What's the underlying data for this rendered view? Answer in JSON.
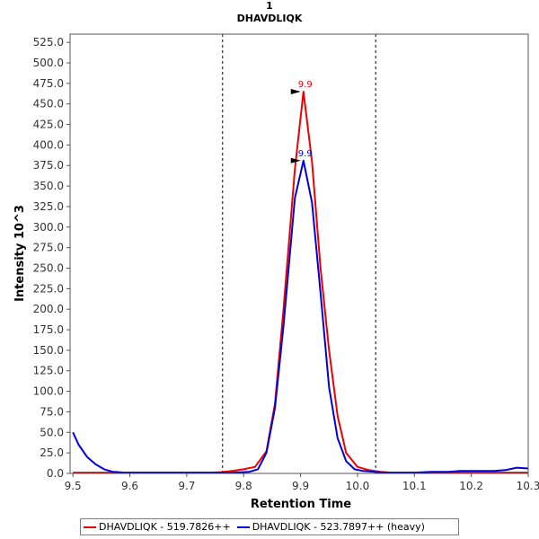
{
  "chart_data": {
    "type": "line",
    "title": "1",
    "subtitle": "DHAVDLIQK",
    "xlabel": "Retention Time",
    "ylabel": "Intensity 10^3",
    "xlim": [
      9.495,
      10.3
    ],
    "ylim": [
      0,
      535
    ],
    "x_ticks": [
      "9.5",
      "9.6",
      "9.7",
      "9.8",
      "9.9",
      "10.0",
      "10.1",
      "10.2",
      "10.3"
    ],
    "y_ticks": [
      "0.0",
      "25.0",
      "50.0",
      "75.0",
      "100.0",
      "125.0",
      "150.0",
      "175.0",
      "200.0",
      "225.0",
      "250.0",
      "275.0",
      "300.0",
      "325.0",
      "350.0",
      "375.0",
      "400.0",
      "425.0",
      "450.0",
      "475.0",
      "500.0",
      "525.0"
    ],
    "vlines": [
      9.763,
      10.032
    ],
    "series": [
      {
        "name": "DHAVDLIQK - 519.7826++",
        "color": "#ee0000",
        "peak_label": "9.9",
        "peak": [
          9.905,
          465
        ],
        "x": [
          9.5,
          9.52,
          9.54,
          9.56,
          9.58,
          9.6,
          9.62,
          9.64,
          9.66,
          9.68,
          9.7,
          9.72,
          9.74,
          9.76,
          9.78,
          9.8,
          9.82,
          9.84,
          9.855,
          9.87,
          9.89,
          9.905,
          9.92,
          9.935,
          9.95,
          9.965,
          9.98,
          10.0,
          10.02,
          10.04,
          10.06,
          10.08,
          10.1,
          10.12,
          10.14,
          10.16,
          10.18,
          10.2,
          10.22,
          10.24,
          10.26,
          10.28,
          10.3
        ],
        "values": [
          1,
          1,
          1,
          1,
          1,
          1,
          1,
          1,
          1,
          1,
          1,
          1,
          1,
          1.5,
          3,
          5,
          8,
          27,
          85,
          200,
          370,
          465,
          380,
          250,
          150,
          70,
          25,
          8,
          4,
          2,
          1,
          1,
          1,
          1,
          1,
          1,
          1,
          1,
          1,
          1,
          1,
          1,
          1
        ]
      },
      {
        "name": "DHAVDLIQK - 523.7897++ (heavy)",
        "color": "#0000dd",
        "peak_label": "9.9",
        "peak": [
          9.905,
          381
        ],
        "x": [
          9.5,
          9.51,
          9.525,
          9.54,
          9.555,
          9.57,
          9.59,
          9.62,
          9.65,
          9.7,
          9.75,
          9.78,
          9.81,
          9.825,
          9.84,
          9.855,
          9.87,
          9.89,
          9.905,
          9.92,
          9.935,
          9.95,
          9.965,
          9.98,
          9.995,
          10.01,
          10.03,
          10.05,
          10.07,
          10.1,
          10.13,
          10.16,
          10.18,
          10.2,
          10.22,
          10.24,
          10.26,
          10.28,
          10.3
        ],
        "values": [
          50,
          35,
          20,
          11,
          5,
          2,
          1,
          1,
          1,
          1,
          1,
          1,
          2,
          5,
          25,
          80,
          180,
          335,
          381,
          330,
          220,
          105,
          43,
          15,
          5,
          3,
          2,
          1,
          1,
          1,
          2,
          2,
          3,
          3,
          3,
          3,
          4,
          7,
          6
        ]
      }
    ],
    "legend_position": "bottom"
  }
}
